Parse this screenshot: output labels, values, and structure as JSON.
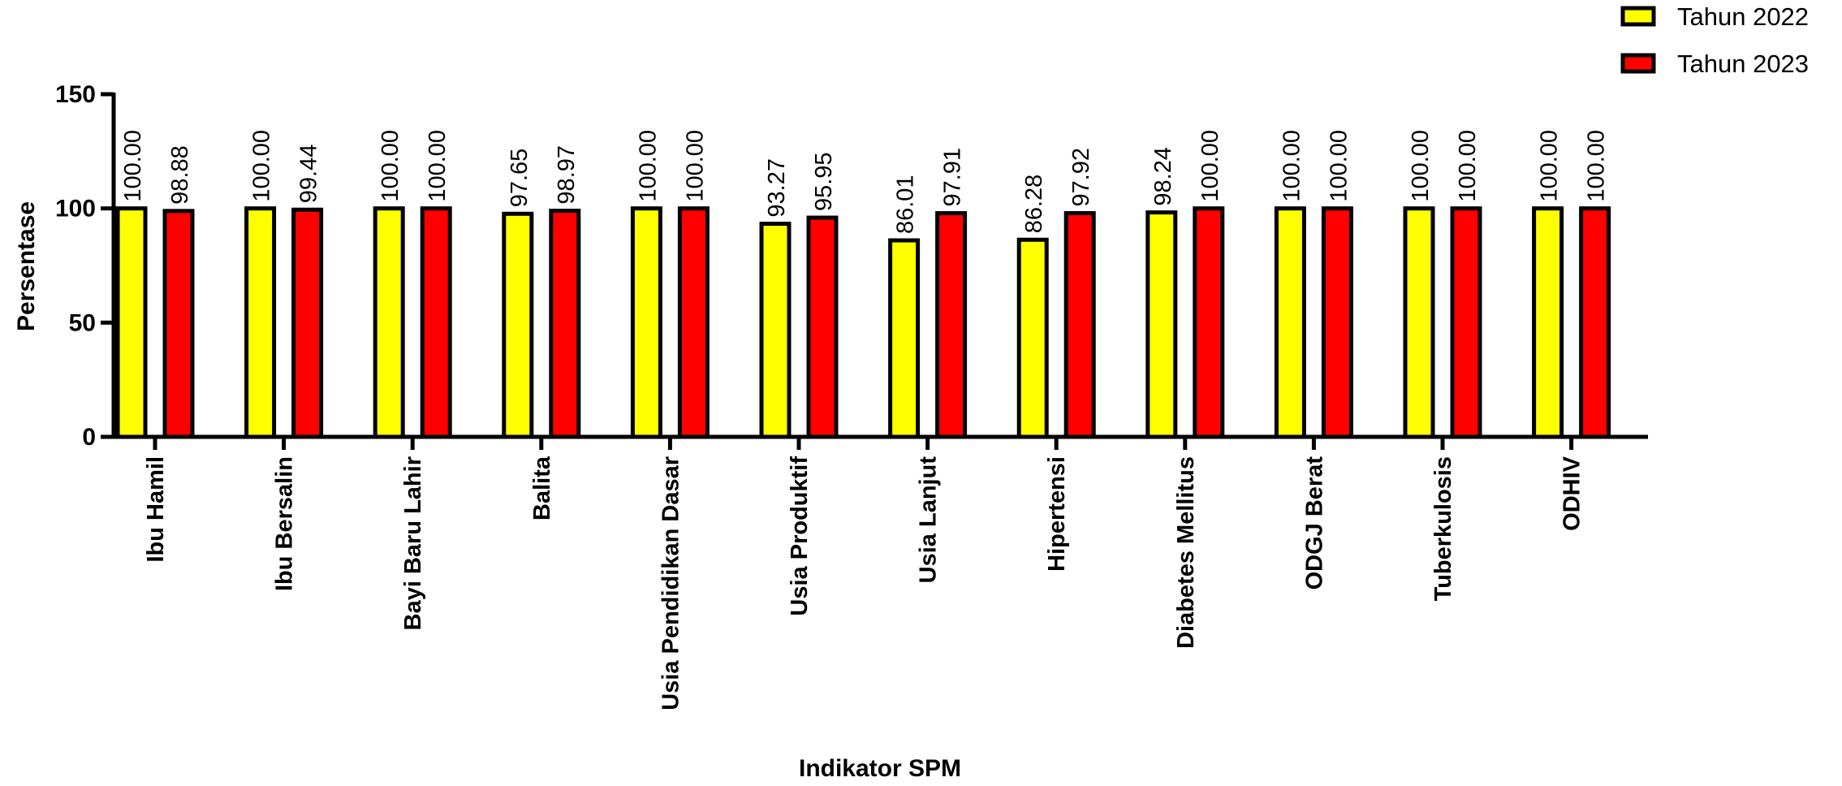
{
  "chart_data": {
    "type": "bar",
    "categories": [
      "Ibu Hamil",
      "Ibu Bersalin",
      "Bayi Baru Lahir",
      "Balita",
      "Usia Pendidikan Dasar",
      "Usia Produktif",
      "Usia Lanjut",
      "Hipertensi",
      "Diabetes Mellitus",
      "ODGJ Berat",
      "Tuberkulosis",
      "ODHIV"
    ],
    "series": [
      {
        "name": "Tahun 2022",
        "color": "#ffff00",
        "values": [
          100.0,
          100.0,
          100.0,
          97.65,
          100.0,
          93.27,
          86.01,
          86.28,
          98.24,
          100.0,
          100.0,
          100.0
        ]
      },
      {
        "name": "Tahun 2023",
        "color": "#ff0000",
        "values": [
          98.88,
          99.44,
          100.0,
          98.97,
          100.0,
          95.95,
          97.91,
          97.92,
          100.0,
          100.0,
          100.0,
          100.0
        ]
      }
    ],
    "data_labels": [
      [
        "100.00",
        "100.00",
        "100.00",
        "97.65",
        "100.00",
        "93.27",
        "86.01",
        "86.28",
        "98.24",
        "100.00",
        "100.00",
        "100.00"
      ],
      [
        "98.88",
        "99.44",
        "100.00",
        "98.97",
        "100.00",
        "95.95",
        "97.91",
        "97.92",
        "100.00",
        "100.00",
        "100.00",
        "100.00"
      ]
    ],
    "title": "",
    "xlabel": "Indikator SPM",
    "ylabel": "Persentase",
    "ylim": [
      0,
      150
    ],
    "yticks": [
      0,
      50,
      100,
      150
    ],
    "legend_position": "top-right",
    "grid": false
  }
}
